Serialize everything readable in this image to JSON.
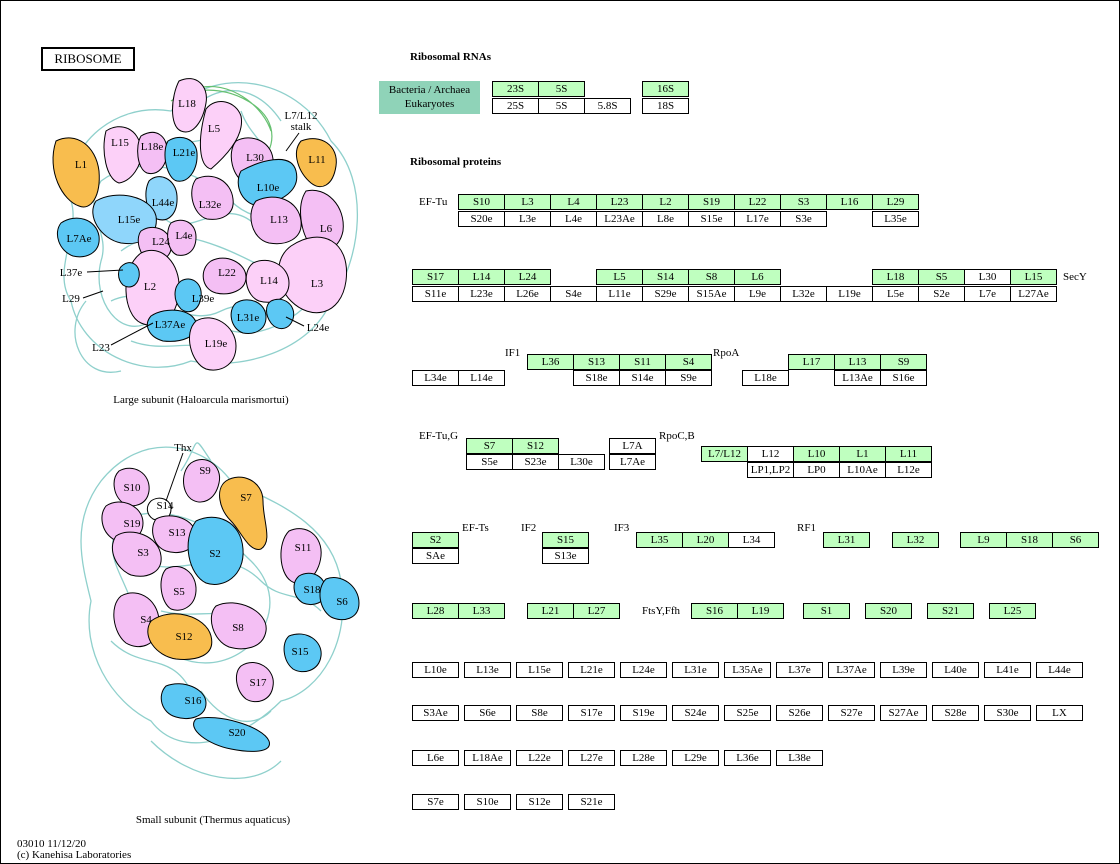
{
  "title": "RIBOSOME",
  "headers": {
    "rna": "Ribosomal RNAs",
    "proteins": "Ribosomal proteins"
  },
  "legend": {
    "line1": "Bacteria / Archaea",
    "line2": "Eukaryotes"
  },
  "captions": {
    "large": "Large subunit (Haloarcula marismortui)",
    "small": "Small subunit (Thermus aquaticus)",
    "stalk1": "L7/L12",
    "stalk2": "stalk"
  },
  "footer": {
    "line1": "03010 11/12/20",
    "line2": "(c) Kanehisa Laboratories"
  },
  "colors": {
    "bacterial": "#bfffbf",
    "legend": "#8fd3b8",
    "pink": "#f4bff4",
    "lightpink": "#fcd0f8",
    "blue": "#5cc8f4",
    "lightblue": "#8fd6fb",
    "orange": "#f8bd4e",
    "rrna": "#8fd0cc"
  },
  "side_labels": [
    "EF-Tu",
    "SecY",
    "IF1",
    "RpoA",
    "EF-Tu,G",
    "RpoC,B",
    "EF-Ts",
    "IF2",
    "IF3",
    "RF1",
    "FtsY,Ffh"
  ],
  "large_proteins": [
    "L18",
    "L5",
    "L15",
    "L18e",
    "L21e",
    "L30",
    "L1",
    "L11",
    "L10e",
    "L44e",
    "L32e",
    "L15e",
    "L13",
    "L6",
    "L7Ae",
    "L24",
    "L4e",
    "L3",
    "L2",
    "L22",
    "L14",
    "L39e",
    "L37Ae",
    "L31e",
    "L19e",
    "L37e",
    "L29",
    "L24e",
    "L23"
  ],
  "small_proteins": [
    "S9",
    "S10",
    "S7",
    "S14",
    "S19",
    "S13",
    "S3",
    "S2",
    "S11",
    "S18",
    "S6",
    "S5",
    "S4",
    "S12",
    "S8",
    "S15",
    "S17",
    "S16",
    "S20",
    "Thx"
  ],
  "cells": [
    "23S",
    "5S",
    "16S",
    "25S",
    "5S",
    "5.8S",
    "18S",
    "S10",
    "L3",
    "L4",
    "L23",
    "L2",
    "S19",
    "L22",
    "S3",
    "L16",
    "L29",
    "S20e",
    "L3e",
    "L4e",
    "L23Ae",
    "L8e",
    "S15e",
    "L17e",
    "S3e",
    "L35e",
    "S17",
    "L14",
    "L24",
    "L5",
    "S14",
    "S8",
    "L6",
    "L18",
    "S5",
    "L30",
    "L15",
    "S11e",
    "L23e",
    "L26e",
    "S4e",
    "L11e",
    "S29e",
    "S15Ae",
    "L9e",
    "L32e",
    "L19e",
    "L5e",
    "S2e",
    "L7e",
    "L27Ae",
    "L36",
    "S13",
    "S11",
    "S4",
    "L17",
    "L13",
    "S9",
    "L34e",
    "L14e",
    "S18e",
    "S14e",
    "S9e",
    "L18e",
    "L13Ae",
    "S16e",
    "S7",
    "S12",
    "L7A",
    "S5e",
    "S23e",
    "L30e",
    "L7Ae",
    "L7/L12",
    "L12",
    "L10",
    "L1",
    "L11",
    "LP1,LP2",
    "LP0",
    "L10Ae",
    "L12e",
    "S2",
    "S15",
    "L35",
    "L20",
    "L34",
    "L31",
    "L32",
    "L9",
    "S18",
    "S6",
    "SAe",
    "S13e",
    "L28",
    "L33",
    "L21",
    "L27",
    "S16",
    "L19",
    "S1",
    "S20",
    "S21",
    "L25",
    "L10e",
    "L13e",
    "L15e",
    "L21e",
    "L24e",
    "L31e",
    "L35Ae",
    "L37e",
    "L37Ae",
    "L39e",
    "L40e",
    "L41e",
    "L44e",
    "S3Ae",
    "S6e",
    "S8e",
    "S17e",
    "S19e",
    "S24e",
    "S25e",
    "S26e",
    "S27e",
    "S27Ae",
    "S28e",
    "S30e",
    "LX",
    "L6e",
    "L18Ae",
    "L22e",
    "L27e",
    "L28e",
    "L29e",
    "L36e",
    "L38e",
    "S7e",
    "S10e",
    "S12e",
    "S21e"
  ]
}
